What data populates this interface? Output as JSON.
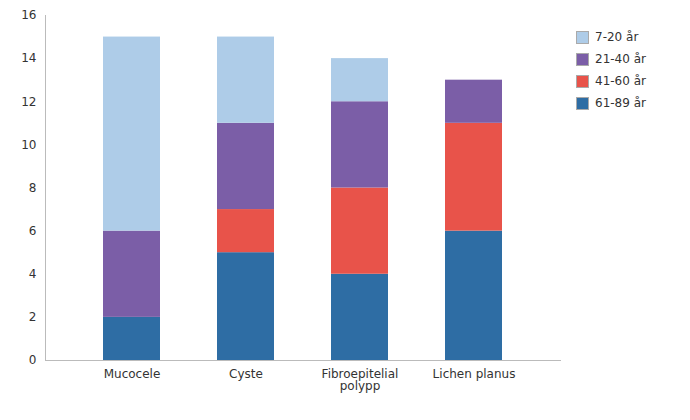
{
  "chart_data": {
    "type": "bar",
    "stacked": true,
    "categories": [
      "Mucocele",
      "Cyste",
      "Fibroepitelial\npolypp",
      "Lichen planus"
    ],
    "series": [
      {
        "name": "61-89 år",
        "color": "#2E6DA4",
        "values": [
          2,
          5,
          4,
          6
        ]
      },
      {
        "name": "41-60 år",
        "color": "#E8534A",
        "values": [
          0,
          2,
          4,
          5
        ]
      },
      {
        "name": "21-40 år",
        "color": "#7B5EA7",
        "values": [
          4,
          4,
          4,
          2
        ]
      },
      {
        "name": "7-20 år",
        "color": "#AECCE8",
        "values": [
          9,
          4,
          2,
          0
        ]
      }
    ],
    "ylim": [
      0,
      16
    ],
    "yticks": [
      0,
      2,
      4,
      6,
      8,
      10,
      12,
      14,
      16
    ],
    "grid": false,
    "legend": "upper right"
  }
}
